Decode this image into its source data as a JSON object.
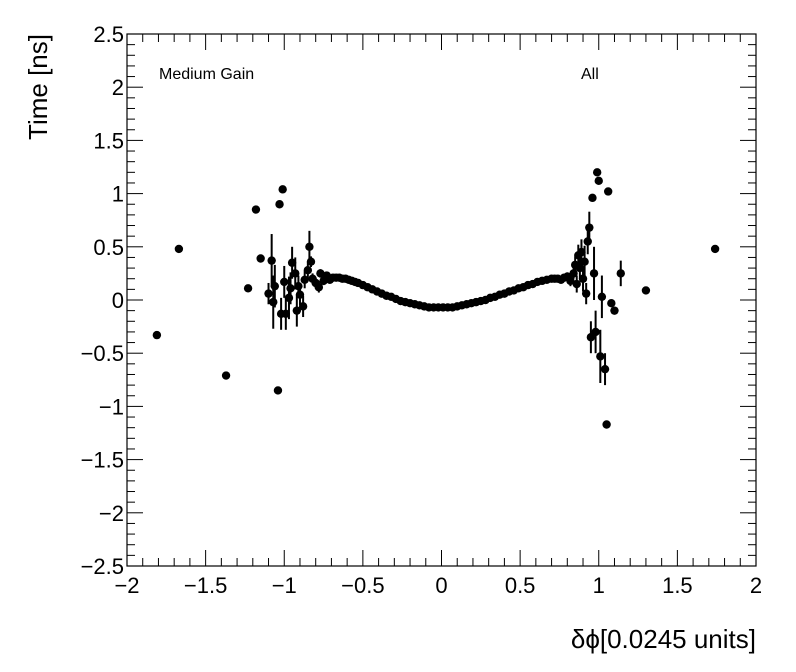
{
  "chart_data": {
    "type": "scatter",
    "title": "",
    "xlabel": "δϕ[0.0245 units]",
    "ylabel": "Time [ns]",
    "xlim": [
      -2,
      2
    ],
    "ylim": [
      -2.5,
      2.5
    ],
    "x_ticks": [
      "−2",
      "−1.5",
      "−1",
      "−0.5",
      "0",
      "0.5",
      "1",
      "1.5",
      "2"
    ],
    "y_ticks": [
      "−2.5",
      "−2",
      "−1.5",
      "−1",
      "−0.5",
      "0",
      "0.5",
      "1",
      "1.5",
      "2",
      "2.5"
    ],
    "grid": false,
    "annotations": [
      {
        "text": "Medium Gain"
      },
      {
        "text": "All"
      }
    ],
    "points": [
      {
        "x": -1.81,
        "y": -0.33,
        "err": 0
      },
      {
        "x": -1.67,
        "y": 0.48,
        "err": 0
      },
      {
        "x": -1.37,
        "y": -0.71,
        "err": 0
      },
      {
        "x": -1.23,
        "y": 0.11,
        "err": 0
      },
      {
        "x": -1.18,
        "y": 0.85,
        "err": 0
      },
      {
        "x": -1.15,
        "y": 0.39,
        "err": 0
      },
      {
        "x": -1.1,
        "y": 0.06,
        "err": 0.1
      },
      {
        "x": -1.08,
        "y": 0.37,
        "err": 0.25
      },
      {
        "x": -1.07,
        "y": -0.02,
        "err": 0.25
      },
      {
        "x": -1.06,
        "y": 0.13,
        "err": 0.2
      },
      {
        "x": -1.04,
        "y": -0.85,
        "err": 0
      },
      {
        "x": -1.03,
        "y": 0.9,
        "err": 0
      },
      {
        "x": -1.02,
        "y": -0.13,
        "err": 0.15
      },
      {
        "x": -1.01,
        "y": 1.04,
        "err": 0
      },
      {
        "x": -1.0,
        "y": 0.17,
        "err": 0.15
      },
      {
        "x": -0.99,
        "y": -0.13,
        "err": 0.15
      },
      {
        "x": -0.97,
        "y": 0.02,
        "err": 0.2
      },
      {
        "x": -0.96,
        "y": 0.11,
        "err": 0.15
      },
      {
        "x": -0.95,
        "y": 0.35,
        "err": 0.15
      },
      {
        "x": -0.93,
        "y": 0.25,
        "err": 0.15
      },
      {
        "x": -0.92,
        "y": -0.1,
        "err": 0.15
      },
      {
        "x": -0.91,
        "y": 0.13,
        "err": 0.1
      },
      {
        "x": -0.9,
        "y": 0.05,
        "err": 0.1
      },
      {
        "x": -0.88,
        "y": -0.06,
        "err": 0.1
      },
      {
        "x": -0.87,
        "y": 0.19,
        "err": 0.08
      },
      {
        "x": -0.85,
        "y": 0.28,
        "err": 0.08
      },
      {
        "x": -0.84,
        "y": 0.5,
        "err": 0.15
      },
      {
        "x": -0.83,
        "y": 0.36,
        "err": 0.05
      },
      {
        "x": -0.82,
        "y": 0.2,
        "err": 0.05
      },
      {
        "x": -0.8,
        "y": 0.16,
        "err": 0.05
      },
      {
        "x": -0.78,
        "y": 0.12,
        "err": 0.05
      },
      {
        "x": -0.77,
        "y": 0.25,
        "err": 0.04
      },
      {
        "x": -0.75,
        "y": 0.18,
        "err": 0.04
      },
      {
        "x": -0.73,
        "y": 0.23,
        "err": 0.03
      },
      {
        "x": -0.71,
        "y": 0.19,
        "err": 0.02
      },
      {
        "x": -0.69,
        "y": 0.21,
        "err": 0.02
      },
      {
        "x": -0.67,
        "y": 0.21,
        "err": 0.02
      },
      {
        "x": -0.65,
        "y": 0.21,
        "err": 0.01
      },
      {
        "x": -0.63,
        "y": 0.2,
        "err": 0.01
      },
      {
        "x": -0.61,
        "y": 0.2,
        "err": 0.01
      },
      {
        "x": -0.59,
        "y": 0.19,
        "err": 0.01
      },
      {
        "x": -0.57,
        "y": 0.18,
        "err": 0
      },
      {
        "x": -0.55,
        "y": 0.17,
        "err": 0
      },
      {
        "x": -0.53,
        "y": 0.16,
        "err": 0
      },
      {
        "x": -0.5,
        "y": 0.14,
        "err": 0
      },
      {
        "x": -0.47,
        "y": 0.12,
        "err": 0
      },
      {
        "x": -0.44,
        "y": 0.1,
        "err": 0
      },
      {
        "x": -0.41,
        "y": 0.08,
        "err": 0
      },
      {
        "x": -0.38,
        "y": 0.06,
        "err": 0
      },
      {
        "x": -0.35,
        "y": 0.04,
        "err": 0
      },
      {
        "x": -0.32,
        "y": 0.03,
        "err": 0
      },
      {
        "x": -0.29,
        "y": 0.01,
        "err": 0
      },
      {
        "x": -0.26,
        "y": -0.01,
        "err": 0
      },
      {
        "x": -0.23,
        "y": -0.02,
        "err": 0
      },
      {
        "x": -0.2,
        "y": -0.03,
        "err": 0
      },
      {
        "x": -0.17,
        "y": -0.04,
        "err": 0
      },
      {
        "x": -0.14,
        "y": -0.05,
        "err": 0
      },
      {
        "x": -0.11,
        "y": -0.06,
        "err": 0
      },
      {
        "x": -0.08,
        "y": -0.07,
        "err": 0
      },
      {
        "x": -0.05,
        "y": -0.07,
        "err": 0
      },
      {
        "x": -0.02,
        "y": -0.07,
        "err": 0
      },
      {
        "x": 0.01,
        "y": -0.07,
        "err": 0
      },
      {
        "x": 0.04,
        "y": -0.07,
        "err": 0
      },
      {
        "x": 0.07,
        "y": -0.07,
        "err": 0
      },
      {
        "x": 0.1,
        "y": -0.06,
        "err": 0
      },
      {
        "x": 0.13,
        "y": -0.05,
        "err": 0
      },
      {
        "x": 0.16,
        "y": -0.04,
        "err": 0
      },
      {
        "x": 0.19,
        "y": -0.03,
        "err": 0
      },
      {
        "x": 0.22,
        "y": -0.02,
        "err": 0
      },
      {
        "x": 0.25,
        "y": -0.01,
        "err": 0
      },
      {
        "x": 0.28,
        "y": 0.0,
        "err": 0
      },
      {
        "x": 0.31,
        "y": 0.02,
        "err": 0
      },
      {
        "x": 0.34,
        "y": 0.03,
        "err": 0
      },
      {
        "x": 0.37,
        "y": 0.05,
        "err": 0
      },
      {
        "x": 0.4,
        "y": 0.06,
        "err": 0
      },
      {
        "x": 0.43,
        "y": 0.08,
        "err": 0
      },
      {
        "x": 0.46,
        "y": 0.09,
        "err": 0
      },
      {
        "x": 0.49,
        "y": 0.11,
        "err": 0
      },
      {
        "x": 0.52,
        "y": 0.12,
        "err": 0
      },
      {
        "x": 0.55,
        "y": 0.14,
        "err": 0
      },
      {
        "x": 0.58,
        "y": 0.15,
        "err": 0
      },
      {
        "x": 0.61,
        "y": 0.17,
        "err": 0
      },
      {
        "x": 0.64,
        "y": 0.18,
        "err": 0.01
      },
      {
        "x": 0.67,
        "y": 0.19,
        "err": 0.01
      },
      {
        "x": 0.7,
        "y": 0.2,
        "err": 0.01
      },
      {
        "x": 0.72,
        "y": 0.2,
        "err": 0.02
      },
      {
        "x": 0.74,
        "y": 0.2,
        "err": 0.02
      },
      {
        "x": 0.76,
        "y": 0.19,
        "err": 0.02
      },
      {
        "x": 0.78,
        "y": 0.21,
        "err": 0.03
      },
      {
        "x": 0.8,
        "y": 0.22,
        "err": 0.04
      },
      {
        "x": 0.82,
        "y": 0.18,
        "err": 0.05
      },
      {
        "x": 0.84,
        "y": 0.25,
        "err": 0.05
      },
      {
        "x": 0.85,
        "y": 0.33,
        "err": 0.08
      },
      {
        "x": 0.86,
        "y": 0.15,
        "err": 0.08
      },
      {
        "x": 0.87,
        "y": 0.42,
        "err": 0.1
      },
      {
        "x": 0.88,
        "y": 0.3,
        "err": 0.1
      },
      {
        "x": 0.89,
        "y": 0.45,
        "err": 0.12
      },
      {
        "x": 0.9,
        "y": 0.2,
        "err": 0.12
      },
      {
        "x": 0.91,
        "y": 0.36,
        "err": 0.15
      },
      {
        "x": 0.92,
        "y": 0.06,
        "err": 0.1
      },
      {
        "x": 0.93,
        "y": 0.55,
        "err": 0.12
      },
      {
        "x": 0.94,
        "y": 0.68,
        "err": 0.15
      },
      {
        "x": 0.95,
        "y": -0.35,
        "err": 0.15
      },
      {
        "x": 0.96,
        "y": 0.96,
        "err": 0
      },
      {
        "x": 0.97,
        "y": 0.25,
        "err": 0.25
      },
      {
        "x": 0.98,
        "y": -0.3,
        "err": 0.2
      },
      {
        "x": 0.99,
        "y": 1.2,
        "err": 0
      },
      {
        "x": 1.0,
        "y": 1.12,
        "err": 0
      },
      {
        "x": 1.01,
        "y": -0.53,
        "err": 0.25
      },
      {
        "x": 1.02,
        "y": 0.03,
        "err": 0.2
      },
      {
        "x": 1.04,
        "y": -0.65,
        "err": 0.15
      },
      {
        "x": 1.05,
        "y": -1.17,
        "err": 0
      },
      {
        "x": 1.06,
        "y": 1.02,
        "err": 0
      },
      {
        "x": 1.08,
        "y": -0.03,
        "err": 0
      },
      {
        "x": 1.1,
        "y": -0.1,
        "err": 0
      },
      {
        "x": 1.14,
        "y": 0.25,
        "err": 0.12
      },
      {
        "x": 1.3,
        "y": 0.09,
        "err": 0
      },
      {
        "x": 1.74,
        "y": 0.48,
        "err": 0
      }
    ]
  }
}
